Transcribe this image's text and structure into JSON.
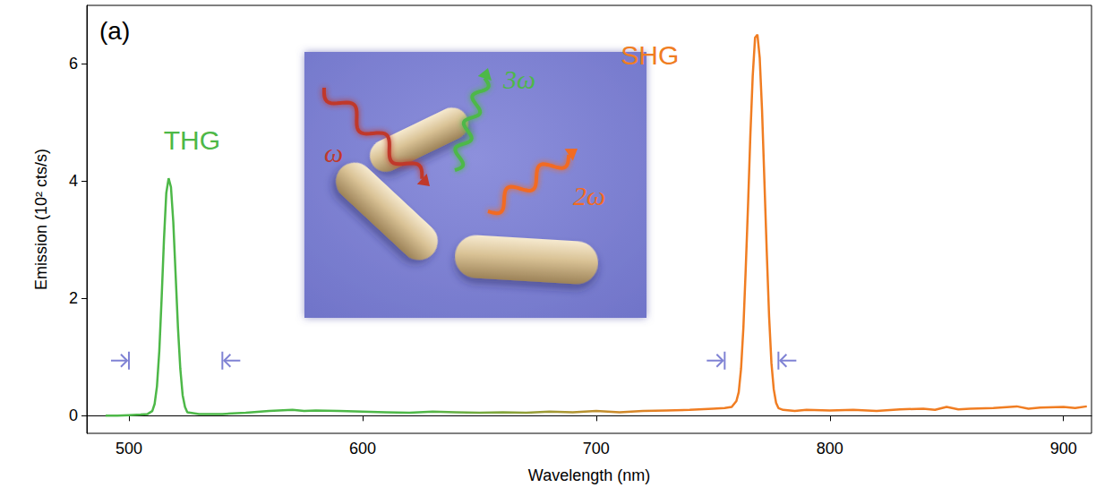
{
  "chart_data": {
    "type": "line",
    "panel": "(a)",
    "x_label": "Wavelength (nm)",
    "y_label": "Emission (10² cts/s)",
    "x": [
      490,
      495,
      500,
      505,
      508,
      510,
      511,
      512,
      513,
      514,
      515,
      516,
      517,
      518,
      519,
      520,
      521,
      522,
      523,
      524,
      525,
      530,
      540,
      550,
      560,
      570,
      575,
      580,
      590,
      600,
      610,
      620,
      630,
      640,
      650,
      660,
      670,
      680,
      690,
      700,
      710,
      720,
      730,
      740,
      750,
      755,
      758,
      760,
      761,
      762,
      763,
      764,
      765,
      766,
      767,
      768,
      769,
      770,
      771,
      772,
      773,
      774,
      775,
      776,
      777,
      778,
      780,
      785,
      790,
      800,
      810,
      820,
      830,
      840,
      845,
      850,
      855,
      860,
      870,
      880,
      885,
      890,
      900,
      905,
      910
    ],
    "values": [
      0.0,
      0.0,
      0.01,
      0.02,
      0.03,
      0.08,
      0.2,
      0.5,
      1.1,
      2.0,
      3.0,
      3.8,
      4.05,
      3.9,
      3.3,
      2.4,
      1.5,
      0.8,
      0.35,
      0.15,
      0.06,
      0.03,
      0.03,
      0.05,
      0.08,
      0.1,
      0.08,
      0.09,
      0.08,
      0.07,
      0.06,
      0.05,
      0.07,
      0.06,
      0.05,
      0.06,
      0.05,
      0.07,
      0.06,
      0.08,
      0.06,
      0.08,
      0.09,
      0.1,
      0.12,
      0.13,
      0.15,
      0.25,
      0.4,
      0.8,
      1.5,
      2.5,
      3.6,
      4.8,
      5.8,
      6.45,
      6.5,
      6.1,
      5.2,
      4.0,
      2.8,
      1.7,
      0.9,
      0.45,
      0.22,
      0.13,
      0.1,
      0.08,
      0.1,
      0.09,
      0.1,
      0.08,
      0.11,
      0.12,
      0.1,
      0.15,
      0.11,
      0.12,
      0.13,
      0.16,
      0.12,
      0.14,
      0.15,
      0.13,
      0.16
    ],
    "colors": [
      "#4db848",
      "#f07d22"
    ],
    "xlim": [
      482,
      912
    ],
    "xticks": [
      500,
      600,
      700,
      800,
      900
    ],
    "ylim": [
      -0.3,
      7.0
    ],
    "yticks": [
      0,
      2,
      4,
      6
    ],
    "grid": false,
    "annotations": [
      {
        "text": "THG",
        "x": 527,
        "y": 4.7,
        "color": "#4db848"
      },
      {
        "text": "SHG",
        "x": 723,
        "y": 6.15,
        "color": "#f07d22"
      }
    ],
    "bands": [
      [
        500,
        540
      ],
      [
        755,
        778
      ]
    ],
    "inset": {
      "labels": [
        {
          "text": "ω",
          "color": "#c0392b"
        },
        {
          "text": "3ω",
          "color": "#4db848"
        },
        {
          "text": "2ω",
          "color": "#f26b21"
        }
      ]
    }
  }
}
